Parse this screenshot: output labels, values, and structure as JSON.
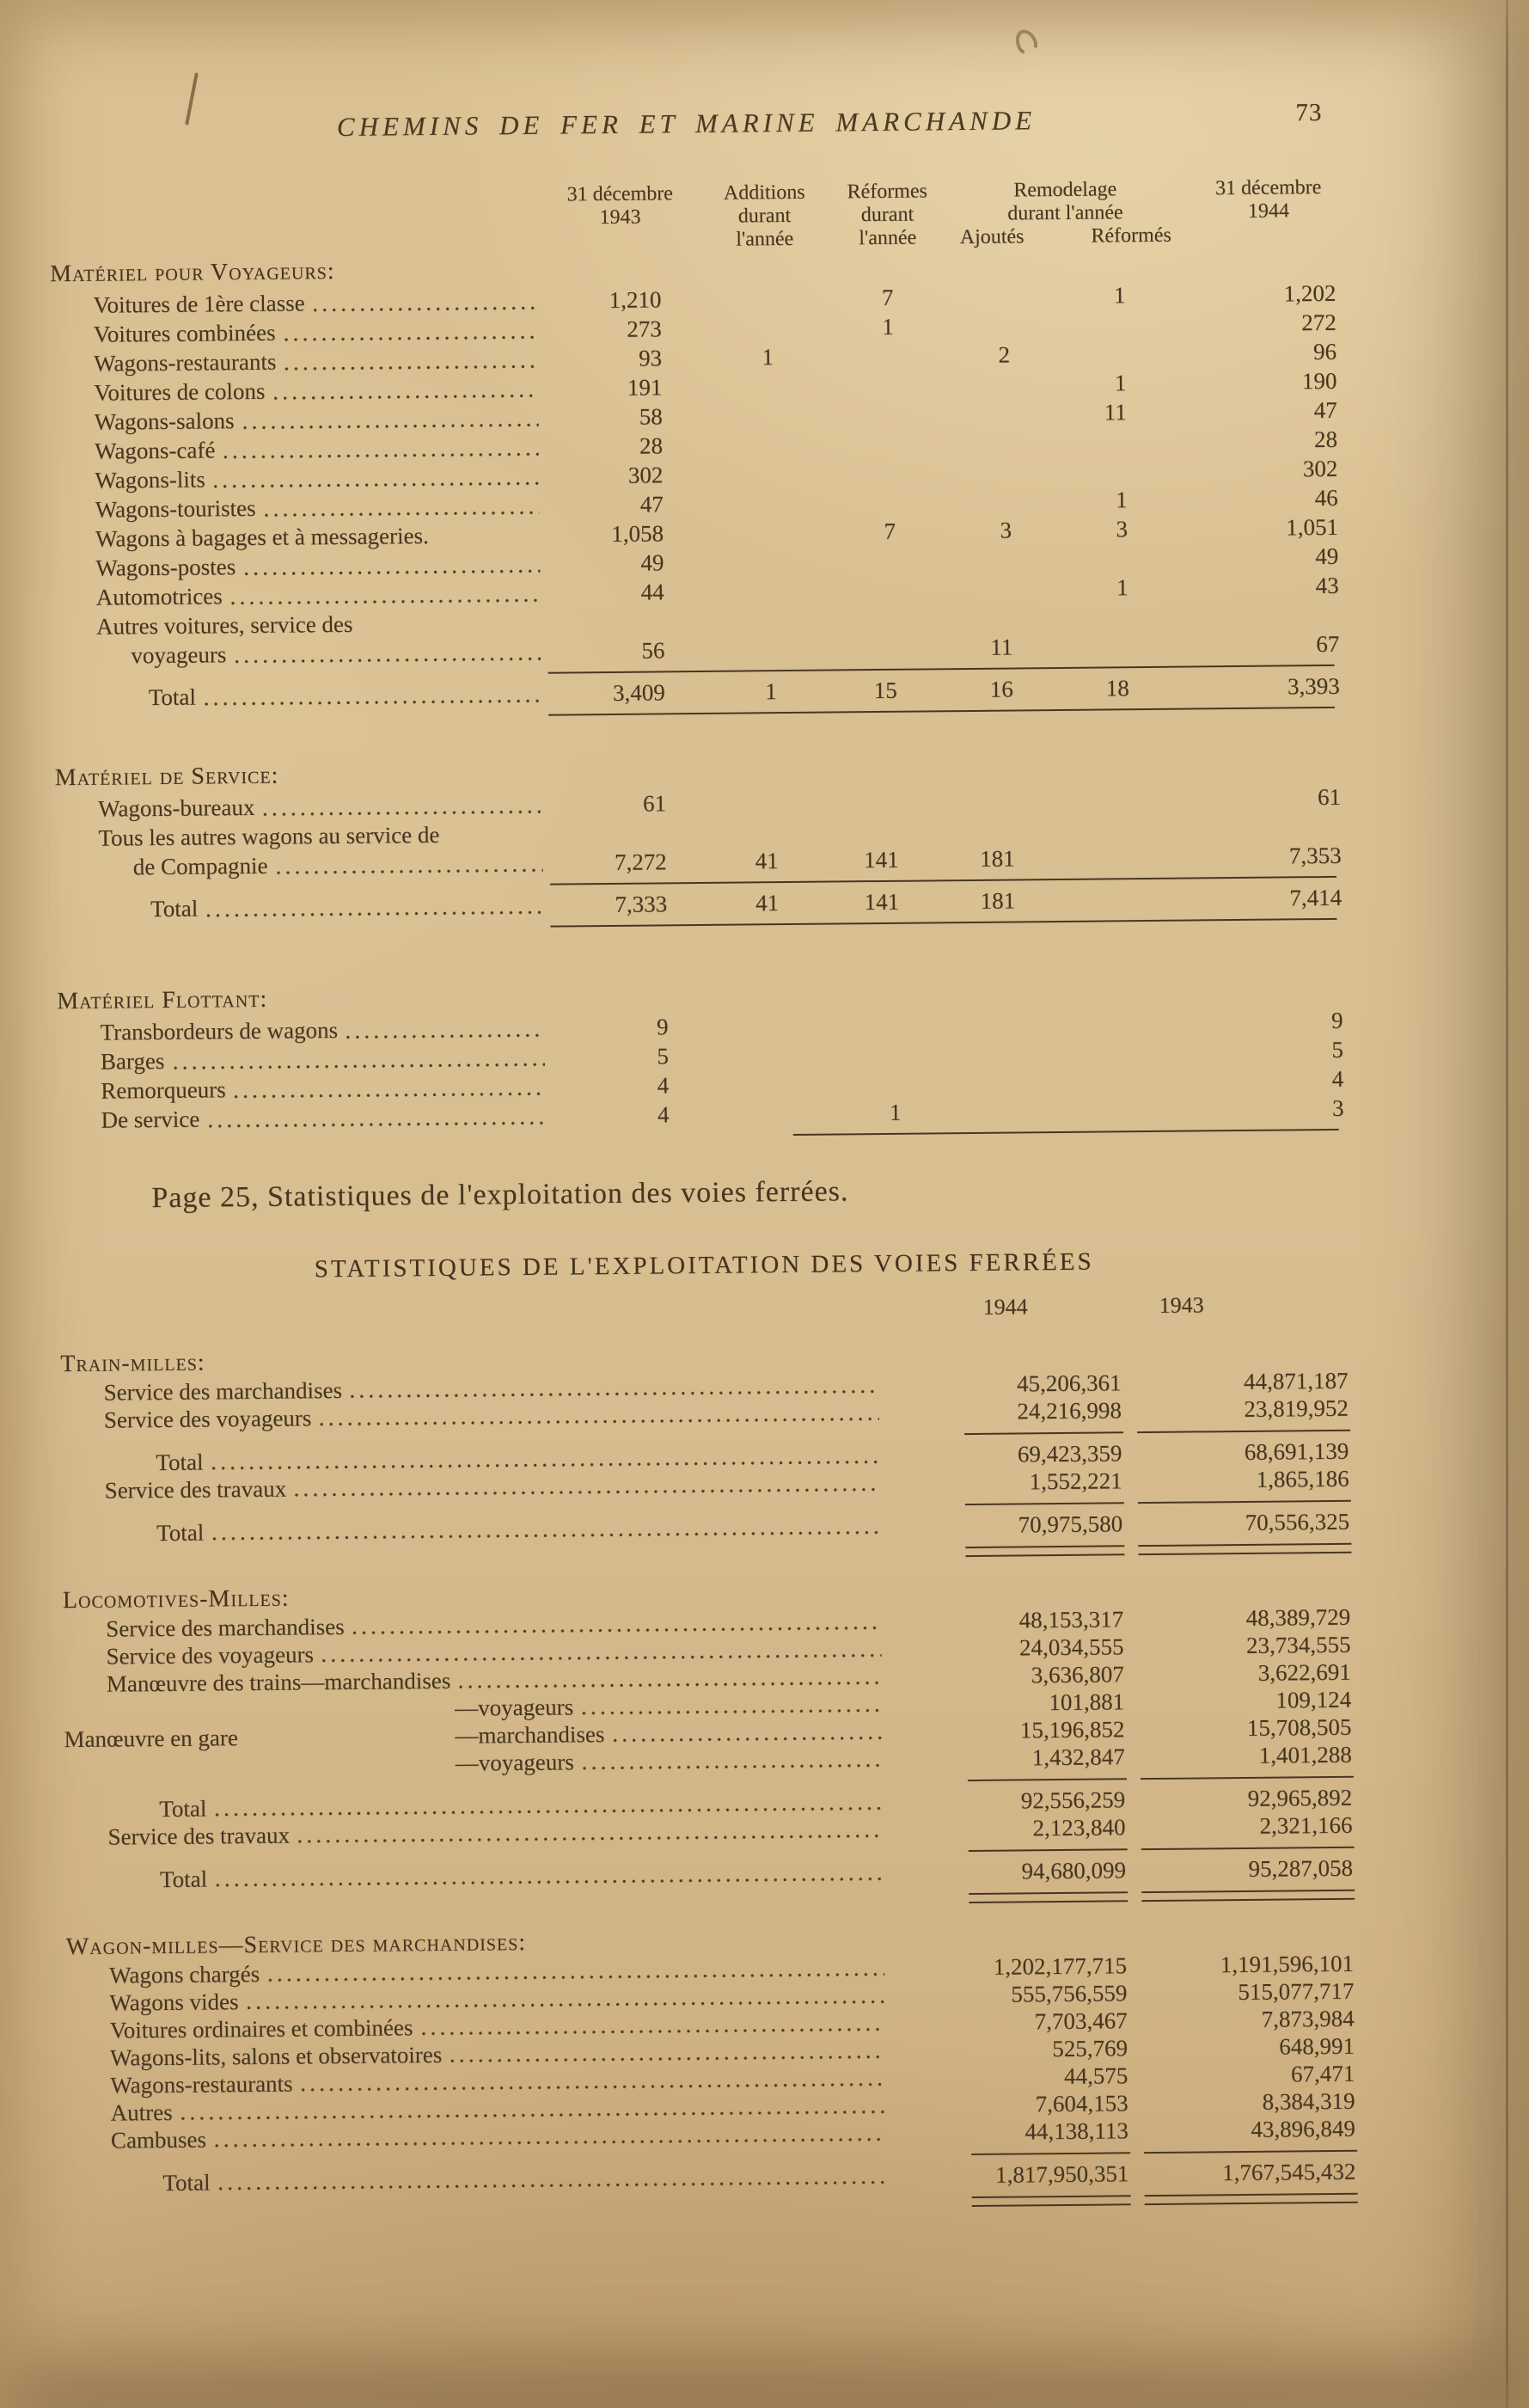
{
  "page": {
    "header_title": "CHEMINS DE FER ET MARINE MARCHANDE",
    "page_number": "73"
  },
  "materiel_table": {
    "columns": {
      "dec1943": [
        "31 décembre",
        "1943"
      ],
      "additions": [
        "Additions",
        "durant",
        "l'année"
      ],
      "reformes": [
        "Réformes",
        "durant",
        "l'année"
      ],
      "remodelage": {
        "lines": [
          "Remodelage",
          "durant l'année"
        ],
        "sub": [
          "Ajoutés",
          "Réformés"
        ]
      },
      "dec1944": [
        "31 décembre",
        "1944"
      ]
    },
    "sections": [
      {
        "heading": "Matériel pour Voyageurs:",
        "rows": [
          {
            "label": "Voitures de 1ère classe",
            "v": [
              "1,210",
              "",
              "7",
              "",
              "1",
              "1,202"
            ]
          },
          {
            "label": "Voitures combinées",
            "v": [
              "273",
              "",
              "1",
              "",
              "",
              "272"
            ]
          },
          {
            "label": "Wagons-restaurants",
            "v": [
              "93",
              "1",
              "",
              "2",
              "",
              "96"
            ]
          },
          {
            "label": "Voitures de colons",
            "v": [
              "191",
              "",
              "",
              "",
              "1",
              "190"
            ]
          },
          {
            "label": "Wagons-salons",
            "v": [
              "58",
              "",
              "",
              "",
              "11",
              "47"
            ]
          },
          {
            "label": "Wagons-café",
            "v": [
              "28",
              "",
              "",
              "",
              "",
              "28"
            ]
          },
          {
            "label": "Wagons-lits",
            "v": [
              "302",
              "",
              "",
              "",
              "",
              "302"
            ]
          },
          {
            "label": "Wagons-touristes",
            "v": [
              "47",
              "",
              "",
              "",
              "1",
              "46"
            ]
          },
          {
            "label": "Wagons à bagages et à messageries.",
            "v": [
              "1,058",
              "",
              "7",
              "3",
              "3",
              "1,051"
            ]
          },
          {
            "label": "Wagons-postes",
            "v": [
              "49",
              "",
              "",
              "",
              "",
              "49"
            ]
          },
          {
            "label": "Automotrices",
            "v": [
              "44",
              "",
              "",
              "",
              "1",
              "43"
            ]
          },
          {
            "label": "Autres voitures, service des",
            "label2": "voyageurs",
            "v": [
              "56",
              "",
              "",
              "11",
              "",
              "67"
            ]
          }
        ],
        "total": {
          "label": "Total",
          "v": [
            "3,409",
            "1",
            "15",
            "16",
            "18",
            "3,393"
          ]
        }
      },
      {
        "heading": "Matériel de Service:",
        "rows": [
          {
            "label": "Wagons-bureaux",
            "v": [
              "61",
              "",
              "",
              "",
              "",
              "61"
            ]
          },
          {
            "label": "Tous les autres wagons au service de",
            "label2": "de Compagnie",
            "v": [
              "7,272",
              "41",
              "141",
              "181",
              "",
              "7,353"
            ]
          }
        ],
        "total": {
          "label": "Total",
          "v": [
            "7,333",
            "41",
            "141",
            "181",
            "",
            "7,414"
          ]
        }
      },
      {
        "heading": "Matériel Flottant:",
        "rows": [
          {
            "label": "Transbordeurs de wagons",
            "v": [
              "9",
              "",
              "",
              "",
              "",
              "9"
            ]
          },
          {
            "label": "Barges",
            "v": [
              "5",
              "",
              "",
              "",
              "",
              "5"
            ]
          },
          {
            "label": "Remorqueurs",
            "v": [
              "4",
              "",
              "",
              "",
              "",
              "4"
            ]
          },
          {
            "label": "De service",
            "v": [
              "4",
              "",
              "1",
              "",
              "",
              "3"
            ]
          }
        ]
      }
    ]
  },
  "page25_note": "Page 25, Statistiques de l'exploitation des voies ferrées.",
  "exploitation_table": {
    "title": "STATISTIQUES DE L'EXPLOITATION DES VOIES FERRÉES",
    "col_years": [
      "1944",
      "1943"
    ],
    "sections": [
      {
        "heading": "Train-milles:",
        "rows": [
          {
            "label": "Service des marchandises",
            "v": [
              "45,206,361",
              "44,871,187"
            ]
          },
          {
            "label": "Service des voyageurs",
            "v": [
              "24,216,998",
              "23,819,952"
            ]
          },
          {
            "label": "Total",
            "total": true,
            "v": [
              "69,423,359",
              "68,691,139"
            ]
          },
          {
            "label": "Service des travaux",
            "v": [
              "1,552,221",
              "1,865,186"
            ]
          },
          {
            "label": "Total",
            "total": true,
            "v": [
              "70,975,580",
              "70,556,325"
            ]
          }
        ]
      },
      {
        "heading": "Locomotives-Milles:",
        "rows": [
          {
            "label": "Service des marchandises",
            "v": [
              "48,153,317",
              "48,389,729"
            ]
          },
          {
            "label": "Service des voyageurs",
            "v": [
              "24,034,555",
              "23,734,555"
            ]
          },
          {
            "label": "Manœuvre des trains—marchandises",
            "v": [
              "3,636,807",
              "3,622,691"
            ]
          },
          {
            "label": "—voyageurs",
            "v": [
              "101,881",
              "109,124"
            ]
          },
          {
            "label": "—marchandises",
            "side_label": "Manœuvre en gare",
            "v": [
              "15,196,852",
              "15,708,505"
            ]
          },
          {
            "label": "—voyageurs",
            "v": [
              "1,432,847",
              "1,401,288"
            ]
          },
          {
            "label": "Total",
            "total": true,
            "v": [
              "92,556,259",
              "92,965,892"
            ]
          },
          {
            "label": "Service des travaux",
            "v": [
              "2,123,840",
              "2,321,166"
            ]
          },
          {
            "label": "Total",
            "total": true,
            "v": [
              "94,680,099",
              "95,287,058"
            ]
          }
        ]
      },
      {
        "heading": "Wagon-milles—Service des marchandises:",
        "rows": [
          {
            "label": "Wagons chargés",
            "v": [
              "1,202,177,715",
              "1,191,596,101"
            ]
          },
          {
            "label": "Wagons vides",
            "v": [
              "555,756,559",
              "515,077,717"
            ]
          },
          {
            "label": "Voitures ordinaires et combinées",
            "v": [
              "7,703,467",
              "7,873,984"
            ]
          },
          {
            "label": "Wagons-lits, salons et observatoires",
            "v": [
              "525,769",
              "648,991"
            ]
          },
          {
            "label": "Wagons-restaurants",
            "v": [
              "44,575",
              "67,471"
            ]
          },
          {
            "label": "Autres",
            "v": [
              "7,604,153",
              "8,384,319"
            ]
          },
          {
            "label": "Cambuses",
            "v": [
              "44,138,113",
              "43,896,849"
            ]
          },
          {
            "label": "Total",
            "total": true,
            "v": [
              "1,817,950,351",
              "1,767,545,432"
            ]
          }
        ]
      }
    ]
  }
}
